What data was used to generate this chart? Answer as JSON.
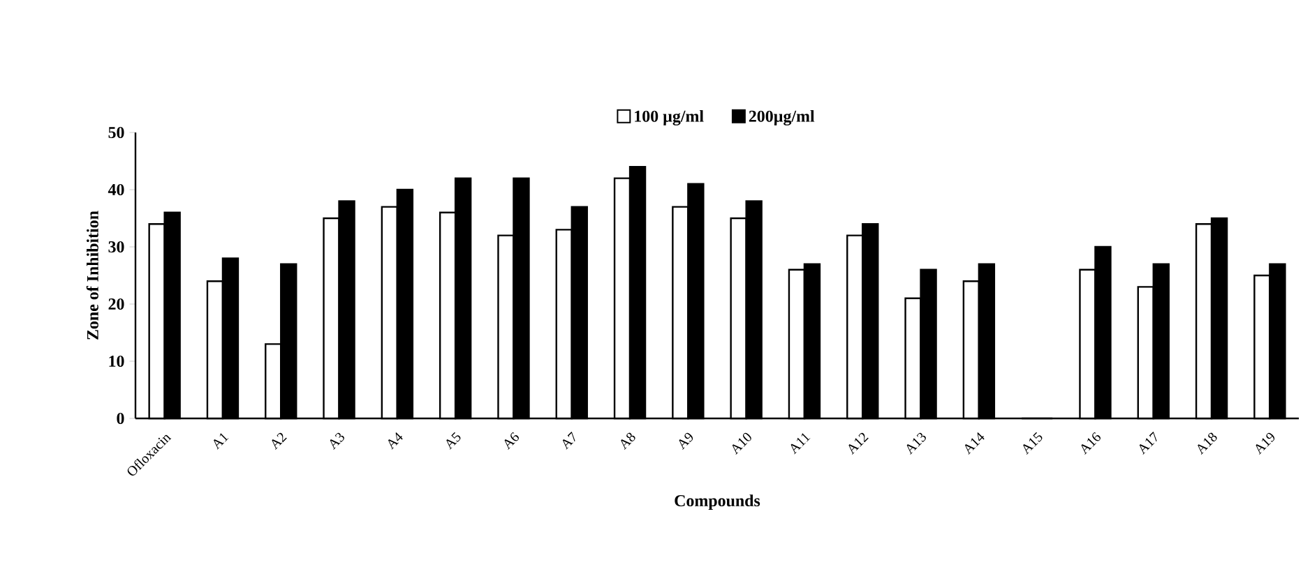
{
  "chart_data": {
    "type": "bar",
    "xlabel": "Compounds",
    "ylabel": "Zone of Inhibition",
    "categories": [
      "Ofloxacin",
      "A1",
      "A2",
      "A3",
      "A4",
      "A5",
      "A6",
      "A7",
      "A8",
      "A9",
      "A10",
      "A11",
      "A12",
      "A13",
      "A14",
      "A15",
      "A16",
      "A17",
      "A18",
      "A19"
    ],
    "series": [
      {
        "name": "100 µg/ml",
        "color": "#ffffff",
        "values": [
          34,
          24,
          13,
          35,
          37,
          36,
          32,
          33,
          42,
          37,
          35,
          26,
          32,
          21,
          24,
          0,
          26,
          23,
          34,
          25
        ]
      },
      {
        "name": "200µg/ml",
        "color": "#000000",
        "values": [
          36,
          28,
          27,
          38,
          40,
          42,
          42,
          37,
          44,
          41,
          38,
          27,
          34,
          26,
          27,
          0,
          30,
          27,
          35,
          27
        ]
      }
    ],
    "ylim": [
      0,
      50
    ],
    "yticks": [
      0,
      10,
      20,
      30,
      40,
      50
    ],
    "legend": "top"
  }
}
